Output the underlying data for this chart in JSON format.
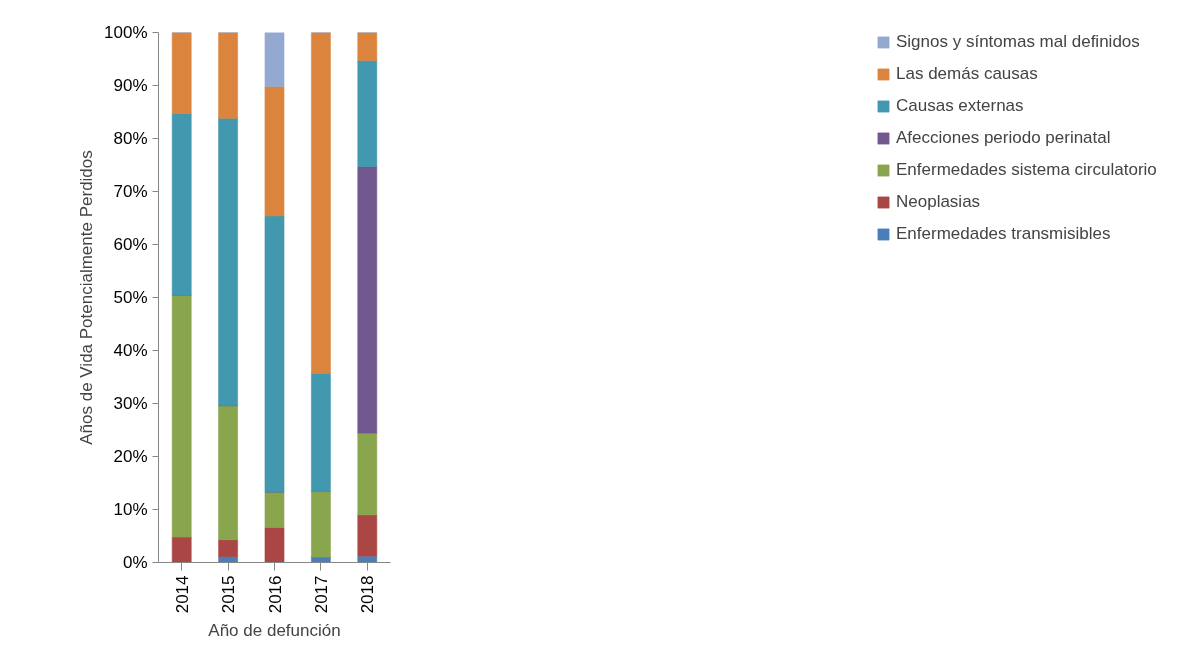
{
  "chart_data": {
    "type": "bar",
    "stacked": true,
    "xlabel": "Año de defunción",
    "ylabel": "Años de Vida Potencialmente Perdidos",
    "categories": [
      "2014",
      "2015",
      "2016",
      "2017",
      "2018"
    ],
    "series": [
      {
        "name": "Enfermedades transmisibles",
        "color": "#4a7ebb",
        "values": [
          0,
          1.1,
          0,
          1.0,
          1.2
        ]
      },
      {
        "name": "Neoplasias",
        "color": "#aa4643",
        "values": [
          4.8,
          3.2,
          6.6,
          0,
          7.8
        ]
      },
      {
        "name": "Enfermedades sistema circulatorio",
        "color": "#89a54e",
        "values": [
          45.6,
          25.3,
          6.7,
          12.4,
          15.4
        ]
      },
      {
        "name": "Afecciones periodo perinatal",
        "color": "#71588f",
        "values": [
          0,
          0,
          0,
          0,
          50.3
        ]
      },
      {
        "name": "Causas externas",
        "color": "#4198af",
        "values": [
          34.3,
          54.2,
          52.1,
          22.3,
          20.0
        ]
      },
      {
        "name": "Las demás causas",
        "color": "#db843d",
        "values": [
          15.3,
          16.2,
          24.4,
          64.3,
          5.3
        ]
      },
      {
        "name": "Signos y síntomas mal definidos",
        "color": "#93a9cf",
        "values": [
          0,
          0,
          10.2,
          0,
          0
        ]
      }
    ],
    "ylim": [
      0,
      100
    ],
    "yticks": [
      {
        "value": 0,
        "label": "0%"
      },
      {
        "value": 10,
        "label": "10%"
      },
      {
        "value": 20,
        "label": "20%"
      },
      {
        "value": 30,
        "label": "30%"
      },
      {
        "value": 40,
        "label": "40%"
      },
      {
        "value": 50,
        "label": "50%"
      },
      {
        "value": 60,
        "label": "60%"
      },
      {
        "value": 70,
        "label": "70%"
      },
      {
        "value": 80,
        "label": "80%"
      },
      {
        "value": 90,
        "label": "90%"
      },
      {
        "value": 100,
        "label": "100%"
      }
    ],
    "grid": false,
    "legend": "right"
  }
}
